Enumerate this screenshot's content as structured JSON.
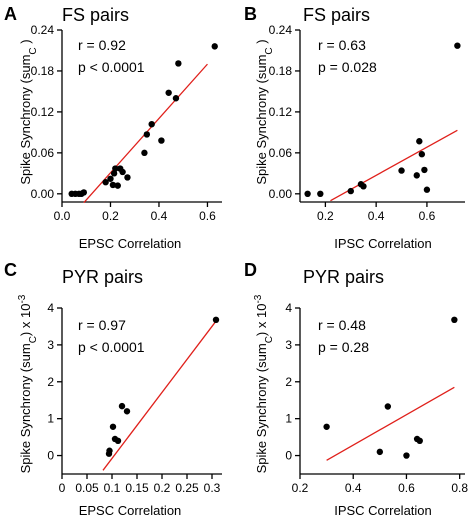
{
  "figure": {
    "colors": {
      "points": "#000000",
      "fit_line": "#e0201b",
      "axis": "#000000"
    }
  },
  "chart_data": [
    {
      "panel": "A",
      "type": "scatter",
      "title": "FS pairs",
      "xlabel": "EPSC Correlation",
      "ylabel_main": "Spike Synchrony (sum",
      "ylabel_sub": "C",
      "ylabel_tail": " )",
      "ylabel_sup": "",
      "stats": [
        "r = 0.92",
        "p < 0.0001"
      ],
      "xlim": [
        0.0,
        0.66
      ],
      "ylim": [
        -0.012,
        0.24
      ],
      "xticks": [
        0.0,
        0.2,
        0.4,
        0.6
      ],
      "xtick_labels": [
        "0.0",
        "0.2",
        "0.4",
        "0.6"
      ],
      "yticks": [
        0.0,
        0.06,
        0.12,
        0.18,
        0.24
      ],
      "ytick_labels": [
        "0.00",
        "0.06",
        "0.12",
        "0.18",
        "0.24"
      ],
      "points": [
        [
          0.04,
          0.0
        ],
        [
          0.055,
          0.0
        ],
        [
          0.07,
          0.0
        ],
        [
          0.08,
          0.0
        ],
        [
          0.09,
          0.002
        ],
        [
          0.18,
          0.017
        ],
        [
          0.2,
          0.022
        ],
        [
          0.21,
          0.013
        ],
        [
          0.215,
          0.03
        ],
        [
          0.22,
          0.037
        ],
        [
          0.23,
          0.012
        ],
        [
          0.24,
          0.037
        ],
        [
          0.25,
          0.032
        ],
        [
          0.27,
          0.024
        ],
        [
          0.34,
          0.06
        ],
        [
          0.35,
          0.087
        ],
        [
          0.37,
          0.102
        ],
        [
          0.41,
          0.078
        ],
        [
          0.44,
          0.148
        ],
        [
          0.47,
          0.14
        ],
        [
          0.48,
          0.191
        ],
        [
          0.63,
          0.216
        ]
      ],
      "fit": [
        [
          0.09,
          -0.013
        ],
        [
          0.6,
          0.19
        ]
      ]
    },
    {
      "panel": "B",
      "type": "scatter",
      "title": "FS pairs",
      "xlabel": "IPSC Correlation",
      "ylabel_main": "Spike Synchrony (sum",
      "ylabel_sub": "C",
      "ylabel_tail": " )",
      "ylabel_sup": "",
      "stats": [
        "r = 0.63",
        "p = 0.028"
      ],
      "xlim": [
        0.1,
        0.75
      ],
      "ylim": [
        -0.012,
        0.24
      ],
      "xticks": [
        0.2,
        0.4,
        0.6
      ],
      "xtick_labels": [
        "0.2",
        "0.4",
        "0.6"
      ],
      "yticks": [
        0.0,
        0.06,
        0.12,
        0.18,
        0.24
      ],
      "ytick_labels": [
        "0.00",
        "0.06",
        "0.12",
        "0.18",
        "0.24"
      ],
      "points": [
        [
          0.13,
          0.0
        ],
        [
          0.18,
          0.0
        ],
        [
          0.3,
          0.004
        ],
        [
          0.34,
          0.014
        ],
        [
          0.35,
          0.011
        ],
        [
          0.5,
          0.034
        ],
        [
          0.56,
          0.027
        ],
        [
          0.57,
          0.077
        ],
        [
          0.58,
          0.058
        ],
        [
          0.59,
          0.035
        ],
        [
          0.6,
          0.006
        ],
        [
          0.72,
          0.217
        ]
      ],
      "fit": [
        [
          0.22,
          -0.01
        ],
        [
          0.72,
          0.093
        ]
      ]
    },
    {
      "panel": "C",
      "type": "scatter",
      "title": "PYR pairs",
      "xlabel": "EPSC Correlation",
      "ylabel_main": "Spike Synchrony (sum",
      "ylabel_sub": "C",
      "ylabel_tail": ") x 10",
      "ylabel_sup": "-3",
      "stats": [
        "r = 0.97",
        "p < 0.0001"
      ],
      "xlim": [
        0.0,
        0.32
      ],
      "ylim": [
        -0.5,
        4.0
      ],
      "xticks": [
        0.0,
        0.05,
        0.1,
        0.15,
        0.2,
        0.25,
        0.3
      ],
      "xtick_labels": [
        "0",
        "0.05",
        "0.1",
        "0.15",
        "0.2",
        "0.25",
        "0.3"
      ],
      "yticks": [
        0,
        1,
        2,
        3,
        4
      ],
      "ytick_labels": [
        "0",
        "1",
        "2",
        "3",
        "4"
      ],
      "points": [
        [
          0.094,
          0.05
        ],
        [
          0.095,
          0.13
        ],
        [
          0.102,
          0.78
        ],
        [
          0.106,
          0.45
        ],
        [
          0.112,
          0.4
        ],
        [
          0.12,
          1.34
        ],
        [
          0.13,
          1.2
        ],
        [
          0.308,
          3.68
        ]
      ],
      "fit": [
        [
          0.082,
          -0.4
        ],
        [
          0.31,
          3.68
        ]
      ]
    },
    {
      "panel": "D",
      "type": "scatter",
      "title": "PYR pairs",
      "xlabel": "IPSC Correlation",
      "ylabel_main": "Spike Synchrony (sum",
      "ylabel_sub": "C",
      "ylabel_tail": ") x 10",
      "ylabel_sup": "-3",
      "stats": [
        "r = 0.48",
        "p = 0.28"
      ],
      "xlim": [
        0.2,
        0.82
      ],
      "ylim": [
        -0.5,
        4.0
      ],
      "xticks": [
        0.2,
        0.4,
        0.6,
        0.8
      ],
      "xtick_labels": [
        "0.2",
        "0.4",
        "0.6",
        "0.8"
      ],
      "yticks": [
        0,
        1,
        2,
        3,
        4
      ],
      "ytick_labels": [
        "0",
        "1",
        "2",
        "3",
        "4"
      ],
      "points": [
        [
          0.3,
          0.78
        ],
        [
          0.5,
          0.1
        ],
        [
          0.53,
          1.33
        ],
        [
          0.6,
          0.0
        ],
        [
          0.64,
          0.45
        ],
        [
          0.65,
          0.4
        ],
        [
          0.78,
          3.68
        ]
      ],
      "fit": [
        [
          0.3,
          -0.13
        ],
        [
          0.78,
          1.85
        ]
      ]
    }
  ]
}
